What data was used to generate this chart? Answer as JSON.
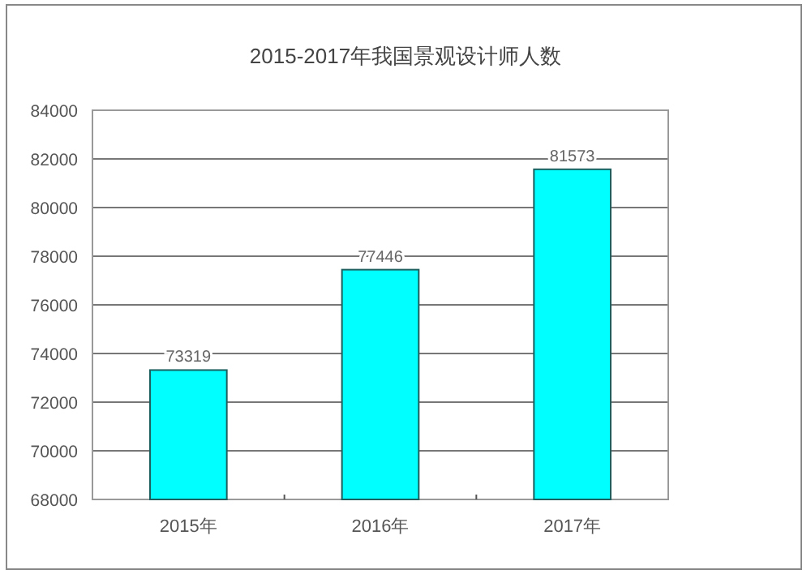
{
  "chart_data": {
    "type": "bar",
    "title": "2015-2017年我国景观设计师人数",
    "categories": [
      "2015年",
      "2016年",
      "2017年"
    ],
    "values": [
      73319,
      77446,
      81573
    ],
    "color": "#00ffff",
    "ylim": [
      68000,
      84000
    ],
    "yticks": [
      68000,
      70000,
      72000,
      74000,
      76000,
      78000,
      80000,
      82000,
      84000
    ],
    "grid": "y",
    "data_labels": true
  }
}
